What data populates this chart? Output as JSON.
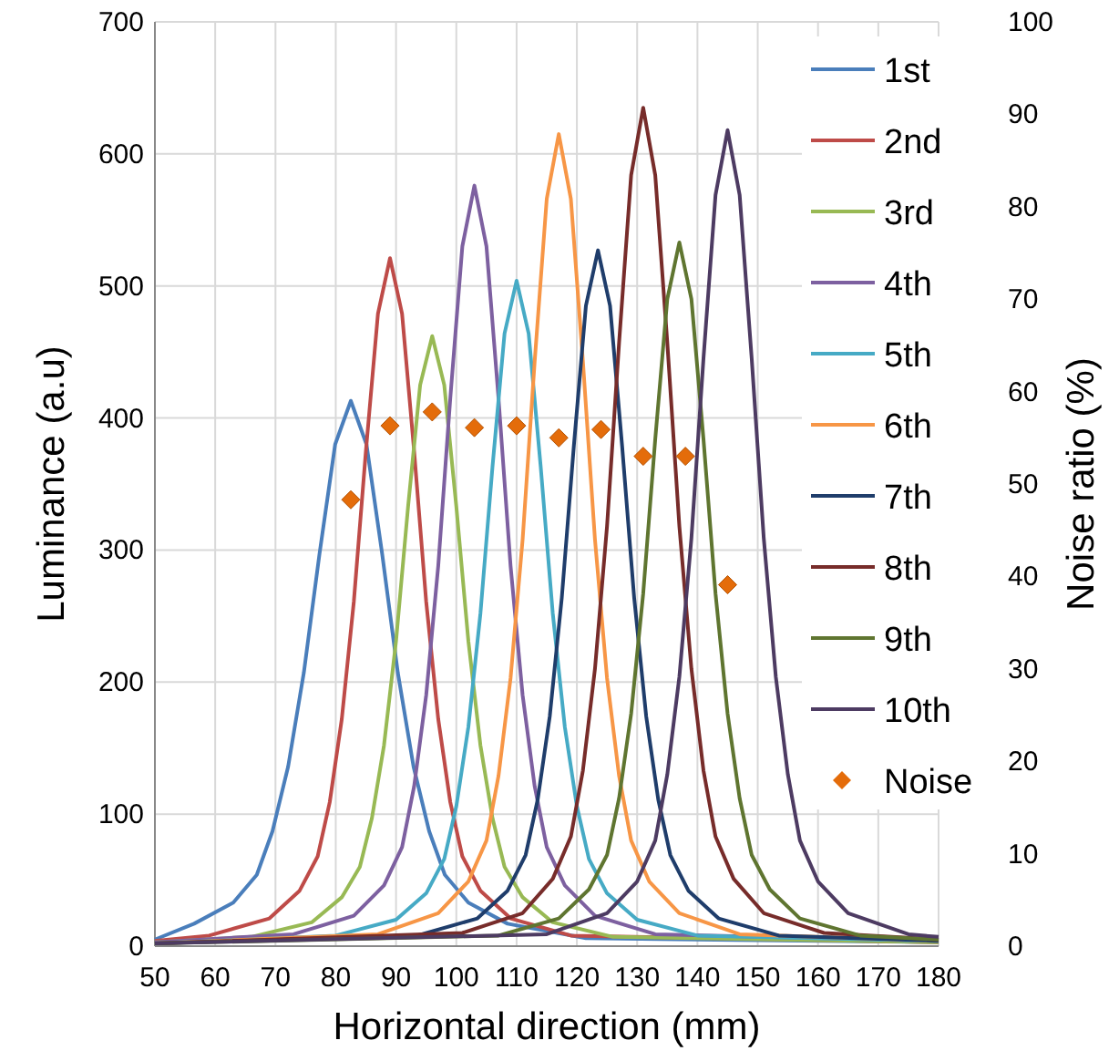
{
  "chart_data": {
    "type": "line",
    "xlabel": "Horizontal direction (mm)",
    "ylabel": "Luminance (a.u)",
    "y2label": "Noise ratio (%)",
    "xlim": [
      50,
      180
    ],
    "xticks": [
      50,
      60,
      70,
      80,
      90,
      100,
      110,
      120,
      130,
      140,
      150,
      160,
      170,
      180
    ],
    "ylim": [
      0,
      700
    ],
    "yticks": [
      0,
      100,
      200,
      300,
      400,
      500,
      600,
      700
    ],
    "y2lim": [
      0,
      100
    ],
    "y2ticks": [
      0,
      10,
      20,
      30,
      40,
      50,
      60,
      70,
      80,
      90,
      100
    ],
    "grid": true,
    "legend": "top right",
    "series": [
      {
        "name": "1st",
        "color": "#4a7ebb",
        "x": [
          50,
          56.5,
          63,
          66.9,
          69.5,
          72.1,
          74.7,
          77.3,
          79.9,
          82.5,
          85.1,
          87.7,
          90.3,
          92.9,
          95.5,
          98.1,
          102,
          108.5,
          121.5,
          180
        ],
        "values": [
          5,
          17,
          33,
          54,
          87,
          136,
          207,
          297,
          380,
          413,
          380,
          297,
          207,
          136,
          87,
          54,
          33,
          17,
          6,
          3
        ]
      },
      {
        "name": "2nd",
        "color": "#be4b48",
        "x": [
          50,
          59,
          69,
          74,
          77,
          79,
          81,
          83,
          85,
          87,
          89,
          91,
          93,
          95,
          97,
          99,
          101,
          104,
          109,
          119,
          180
        ],
        "values": [
          4,
          8,
          21,
          42,
          68,
          109,
          172,
          261,
          375,
          479,
          521,
          479,
          375,
          261,
          172,
          109,
          68,
          42,
          21,
          8,
          3
        ]
      },
      {
        "name": "3rd",
        "color": "#98b954",
        "x": [
          50,
          66,
          76,
          81,
          84,
          86,
          88,
          90,
          92,
          94,
          96,
          98,
          100,
          102,
          104,
          106,
          108,
          111,
          116,
          126,
          180
        ],
        "values": [
          3,
          7,
          18,
          37,
          60,
          97,
          152,
          231,
          333,
          425,
          462,
          425,
          333,
          231,
          152,
          97,
          60,
          37,
          18,
          7,
          3
        ]
      },
      {
        "name": "4th",
        "color": "#7d60a0",
        "x": [
          50,
          73,
          83,
          88,
          91,
          93,
          95,
          97,
          99,
          101,
          103,
          105,
          107,
          109,
          111,
          113,
          115,
          118,
          123,
          133,
          180
        ],
        "values": [
          3,
          9,
          23,
          46,
          75,
          121,
          190,
          288,
          415,
          530,
          576,
          530,
          415,
          288,
          190,
          121,
          75,
          46,
          23,
          9,
          4
        ]
      },
      {
        "name": "5th",
        "color": "#46aac5",
        "x": [
          50,
          80,
          90,
          95,
          98,
          100,
          102,
          104,
          106,
          108,
          110,
          112,
          114,
          116,
          118,
          120,
          122,
          125,
          130,
          140,
          180
        ],
        "values": [
          2,
          8,
          20,
          40,
          66,
          106,
          166,
          252,
          363,
          464,
          504,
          464,
          363,
          252,
          166,
          106,
          66,
          40,
          20,
          8,
          4
        ]
      },
      {
        "name": "6th",
        "color": "#f79646",
        "x": [
          50,
          87,
          97,
          102,
          105,
          107,
          109,
          111,
          113,
          115,
          117,
          119,
          121,
          123,
          125,
          127,
          129,
          132,
          137,
          147,
          180
        ],
        "values": [
          2,
          9,
          25,
          49,
          80,
          129,
          203,
          308,
          443,
          566,
          615,
          566,
          443,
          308,
          203,
          129,
          80,
          49,
          25,
          9,
          4
        ]
      },
      {
        "name": "7th",
        "color": "#1f3d6b",
        "x": [
          50,
          93.5,
          103.5,
          108.5,
          111.5,
          113.5,
          115.5,
          117.5,
          119.5,
          121.5,
          123.5,
          125.5,
          127.5,
          129.5,
          131.5,
          133.5,
          135.5,
          138.5,
          143.5,
          153.5,
          180
        ],
        "values": [
          2,
          8,
          21,
          42,
          69,
          111,
          174,
          264,
          379,
          485,
          527,
          485,
          379,
          264,
          174,
          111,
          69,
          42,
          21,
          8,
          4
        ]
      },
      {
        "name": "8th",
        "color": "#772c2a",
        "x": [
          50,
          101,
          111,
          116,
          119,
          121,
          123,
          125,
          127,
          129,
          131,
          133,
          135,
          137,
          139,
          141,
          143,
          146,
          151,
          161,
          180
        ],
        "values": [
          2,
          10,
          25,
          51,
          83,
          133,
          210,
          318,
          457,
          584,
          635,
          584,
          457,
          318,
          210,
          133,
          83,
          51,
          25,
          10,
          5
        ]
      },
      {
        "name": "9th",
        "color": "#5f7530",
        "x": [
          50,
          107,
          117,
          122,
          125,
          127,
          129,
          131,
          133,
          135,
          137,
          139,
          141,
          143,
          145,
          147,
          149,
          152,
          157,
          167,
          180
        ],
        "values": [
          2,
          8,
          21,
          43,
          69,
          112,
          176,
          267,
          384,
          490,
          533,
          490,
          384,
          267,
          176,
          112,
          69,
          43,
          21,
          8,
          5
        ]
      },
      {
        "name": "10th",
        "color": "#4d3b62",
        "x": [
          50,
          115,
          125,
          130,
          133,
          135,
          137,
          139,
          141,
          143,
          145,
          147,
          149,
          151,
          153,
          155,
          157,
          160,
          165,
          175,
          180
        ],
        "values": [
          2,
          9,
          25,
          49,
          80,
          130,
          204,
          309,
          445,
          569,
          618,
          569,
          445,
          309,
          204,
          130,
          80,
          49,
          25,
          9,
          7
        ]
      },
      {
        "name": "Noise",
        "type": "scatter",
        "axis": "y2",
        "marker": "diamond",
        "color": "#e46c0a",
        "x": [
          82.5,
          89,
          96,
          103,
          110,
          117,
          124,
          131,
          138,
          145
        ],
        "values": [
          48.3,
          56.3,
          57.8,
          56.1,
          56.3,
          55,
          55.9,
          53,
          53,
          39.1
        ]
      }
    ]
  }
}
